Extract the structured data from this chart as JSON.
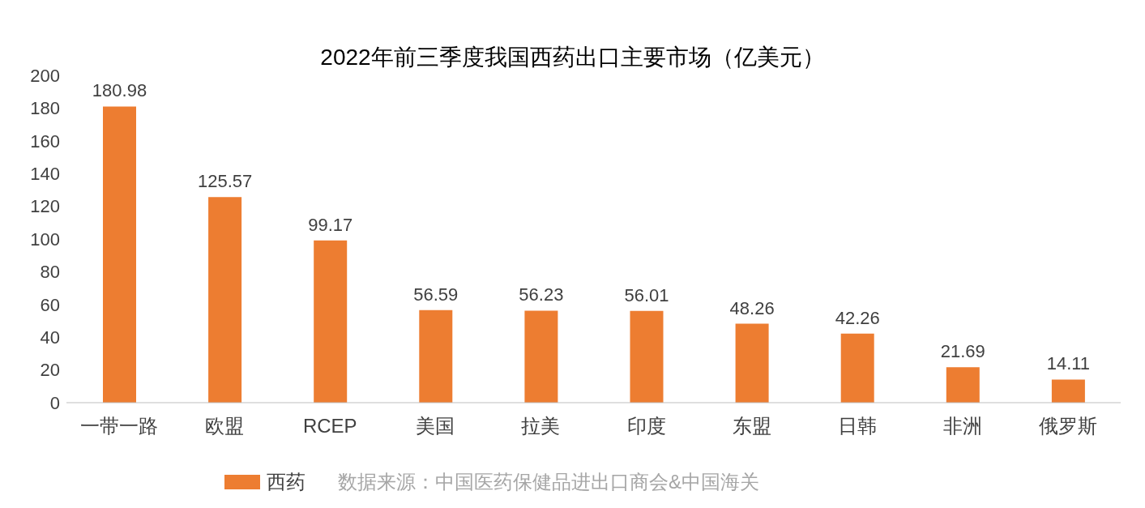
{
  "chart_data": {
    "type": "bar",
    "title": "2022年前三季度我国西药出口主要市场（亿美元）",
    "categories": [
      "一带一路",
      "欧盟",
      "RCEP",
      "美国",
      "拉美",
      "印度",
      "东盟",
      "日韩",
      "非洲",
      "俄罗斯"
    ],
    "series": [
      {
        "name": "西药",
        "color": "#ed7d31",
        "values": [
          180.98,
          125.57,
          99.17,
          56.59,
          56.23,
          56.01,
          48.26,
          42.26,
          21.69,
          14.11
        ]
      }
    ],
    "ylim": [
      0,
      200
    ],
    "yticks": [
      0,
      20,
      40,
      60,
      80,
      100,
      120,
      140,
      160,
      180,
      200
    ],
    "data_labels": true,
    "legend": "bottom",
    "annotations": [
      "数据来源：中国医药保健品进出口商会&中国海关"
    ]
  }
}
